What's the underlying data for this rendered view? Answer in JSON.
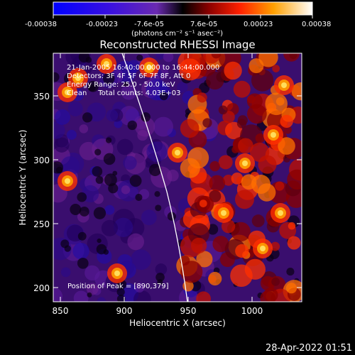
{
  "colorbar": {
    "ticks": [
      "-0.00038",
      "-0.00023",
      "-7.6e-05",
      "7.6e-05",
      "0.00023",
      "0.00038"
    ],
    "units": "(photons cm⁻² s⁻¹ asec⁻²)"
  },
  "image": {
    "title": "Reconstructed RHESSI Image",
    "annotations": [
      "21-Jan-2005 16:40:00.000 to 16:44:00.000",
      "Detectors: 3F 4F 5F 6F 7F 8F, Att 0",
      "Energy Range: 25.0 - 50.0 keV",
      "Clean     Total counts: 4.03E+03"
    ],
    "peak_label": "Position of Peak = [890,379]"
  },
  "axes": {
    "xlabel": "Heliocentric X (arcsec)",
    "ylabel": "Heliocentric Y (arcsec)",
    "xticks": [
      "850",
      "900",
      "950",
      "1000"
    ],
    "yticks": [
      "200",
      "250",
      "300",
      "350"
    ]
  },
  "footer": {
    "timestamp": "28-Apr-2022 01:51"
  }
}
